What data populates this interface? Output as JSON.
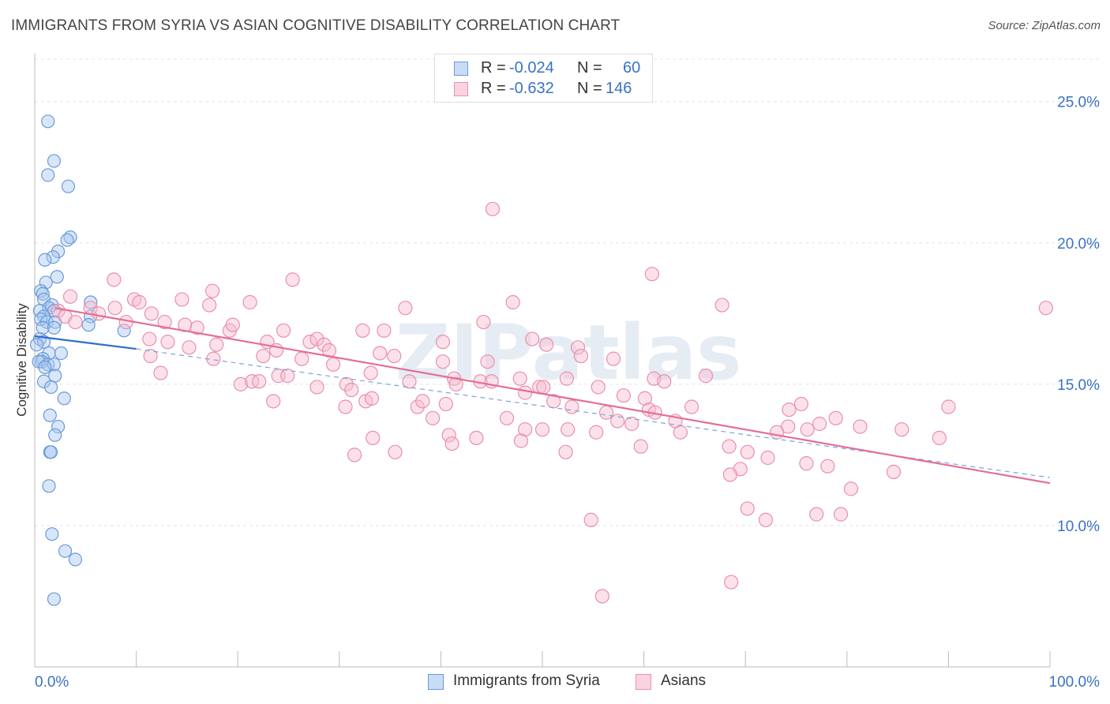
{
  "title": "IMMIGRANTS FROM SYRIA VS ASIAN COGNITIVE DISABILITY CORRELATION CHART",
  "source": "Source: ZipAtlas.com",
  "watermark": "ZIPatlas",
  "legend": {
    "r_label": "R =",
    "n_label": "N =",
    "rows": [
      {
        "name": "Immigrants from Syria",
        "r": "-0.024",
        "n": "60",
        "color": "#a8c8f0",
        "border": "#6a9ad8"
      },
      {
        "name": "Asians",
        "r": "-0.632",
        "n": "146",
        "color": "#f8bcd0",
        "border": "#e890ac"
      }
    ]
  },
  "chart_data": {
    "type": "scatter",
    "title": "IMMIGRANTS FROM SYRIA VS ASIAN COGNITIVE DISABILITY CORRELATION CHART",
    "xlabel": "",
    "ylabel": "Cognitive Disability",
    "xlim": [
      0,
      100
    ],
    "ylim": [
      5,
      26.5
    ],
    "x_tick_labels": [
      "0.0%",
      "100.0%"
    ],
    "y_ticks": [
      10,
      15,
      20,
      25
    ],
    "y_tick_labels": [
      "10.0%",
      "15.0%",
      "20.0%",
      "25.0%"
    ],
    "grid": true,
    "series": [
      {
        "name": "Immigrants from Syria",
        "color": "#6a9ad8",
        "fill": "#a8c8f0",
        "trend": {
          "x": [
            0,
            10
          ],
          "y": [
            16.7,
            16.25
          ],
          "color": "#2f6fd0"
        },
        "trend_dashed": {
          "x": [
            10,
            100
          ],
          "y": [
            16.25,
            11.7
          ],
          "color": "#7aa4dc"
        },
        "points": [
          {
            "x": 1.3,
            "y": 24.3
          },
          {
            "x": 1.9,
            "y": 22.9
          },
          {
            "x": 1.3,
            "y": 22.4
          },
          {
            "x": 3.3,
            "y": 22.0
          },
          {
            "x": 3.5,
            "y": 20.2
          },
          {
            "x": 3.2,
            "y": 20.1
          },
          {
            "x": 2.3,
            "y": 19.7
          },
          {
            "x": 1.8,
            "y": 19.5
          },
          {
            "x": 1.0,
            "y": 19.4
          },
          {
            "x": 2.2,
            "y": 18.8
          },
          {
            "x": 1.1,
            "y": 18.6
          },
          {
            "x": 0.6,
            "y": 18.3
          },
          {
            "x": 0.8,
            "y": 18.2
          },
          {
            "x": 0.9,
            "y": 18.0
          },
          {
            "x": 5.5,
            "y": 17.9
          },
          {
            "x": 1.7,
            "y": 17.8
          },
          {
            "x": 1.4,
            "y": 17.7
          },
          {
            "x": 1.9,
            "y": 17.6
          },
          {
            "x": 0.5,
            "y": 17.6
          },
          {
            "x": 0.9,
            "y": 17.4
          },
          {
            "x": 0.6,
            "y": 17.3
          },
          {
            "x": 1.2,
            "y": 17.2
          },
          {
            "x": 2.0,
            "y": 17.2
          },
          {
            "x": 5.5,
            "y": 17.4
          },
          {
            "x": 5.3,
            "y": 17.1
          },
          {
            "x": 0.8,
            "y": 17.0
          },
          {
            "x": 1.9,
            "y": 17.0
          },
          {
            "x": 8.8,
            "y": 16.9
          },
          {
            "x": 0.5,
            "y": 16.6
          },
          {
            "x": 0.9,
            "y": 16.5
          },
          {
            "x": 0.2,
            "y": 16.4
          },
          {
            "x": 2.6,
            "y": 16.1
          },
          {
            "x": 1.4,
            "y": 16.1
          },
          {
            "x": 0.8,
            "y": 15.9
          },
          {
            "x": 0.7,
            "y": 15.8
          },
          {
            "x": 0.4,
            "y": 15.8
          },
          {
            "x": 1.3,
            "y": 15.7
          },
          {
            "x": 1.9,
            "y": 15.7
          },
          {
            "x": 1.0,
            "y": 15.6
          },
          {
            "x": 2.0,
            "y": 15.3
          },
          {
            "x": 0.9,
            "y": 15.1
          },
          {
            "x": 1.6,
            "y": 14.9
          },
          {
            "x": 2.9,
            "y": 14.5
          },
          {
            "x": 1.5,
            "y": 13.9
          },
          {
            "x": 2.3,
            "y": 13.5
          },
          {
            "x": 2.0,
            "y": 13.2
          },
          {
            "x": 1.5,
            "y": 12.6
          },
          {
            "x": 1.6,
            "y": 12.6
          },
          {
            "x": 1.4,
            "y": 11.4
          },
          {
            "x": 1.7,
            "y": 9.7
          },
          {
            "x": 3.0,
            "y": 9.1
          },
          {
            "x": 4.0,
            "y": 8.8
          },
          {
            "x": 1.9,
            "y": 7.4
          }
        ]
      },
      {
        "name": "Asians",
        "color": "#e890ac",
        "fill": "#f8bcd0",
        "trend": {
          "x": [
            2,
            100
          ],
          "y": [
            17.7,
            11.5
          ],
          "color": "#e46c96"
        },
        "points": [
          {
            "x": 3.5,
            "y": 18.1
          },
          {
            "x": 5.5,
            "y": 17.7
          },
          {
            "x": 7.9,
            "y": 17.7
          },
          {
            "x": 9.8,
            "y": 18.0
          },
          {
            "x": 11.5,
            "y": 17.5
          },
          {
            "x": 14.5,
            "y": 18.0
          },
          {
            "x": 17.5,
            "y": 18.3
          },
          {
            "x": 7.8,
            "y": 18.7
          },
          {
            "x": 10.3,
            "y": 17.9
          },
          {
            "x": 17.2,
            "y": 17.8
          },
          {
            "x": 21.2,
            "y": 17.9
          },
          {
            "x": 25.4,
            "y": 18.7
          },
          {
            "x": 2.3,
            "y": 17.6
          },
          {
            "x": 3.0,
            "y": 17.4
          },
          {
            "x": 4.0,
            "y": 17.2
          },
          {
            "x": 6.3,
            "y": 17.5
          },
          {
            "x": 9.0,
            "y": 17.2
          },
          {
            "x": 12.8,
            "y": 17.2
          },
          {
            "x": 14.8,
            "y": 17.1
          },
          {
            "x": 16.0,
            "y": 17.0
          },
          {
            "x": 19.2,
            "y": 16.9
          },
          {
            "x": 19.5,
            "y": 17.1
          },
          {
            "x": 24.5,
            "y": 16.9
          },
          {
            "x": 27.1,
            "y": 16.5
          },
          {
            "x": 27.8,
            "y": 16.6
          },
          {
            "x": 32.3,
            "y": 16.9
          },
          {
            "x": 34.4,
            "y": 16.9
          },
          {
            "x": 36.5,
            "y": 17.7
          },
          {
            "x": 44.2,
            "y": 17.2
          },
          {
            "x": 47.1,
            "y": 17.9
          },
          {
            "x": 60.8,
            "y": 18.9
          },
          {
            "x": 67.7,
            "y": 17.8
          },
          {
            "x": 99.6,
            "y": 17.7
          },
          {
            "x": 45.1,
            "y": 21.2
          },
          {
            "x": 11.3,
            "y": 16.6
          },
          {
            "x": 13.1,
            "y": 16.5
          },
          {
            "x": 15.2,
            "y": 16.3
          },
          {
            "x": 17.9,
            "y": 16.4
          },
          {
            "x": 22.9,
            "y": 16.5
          },
          {
            "x": 28.5,
            "y": 16.4
          },
          {
            "x": 29.0,
            "y": 16.2
          },
          {
            "x": 40.2,
            "y": 16.5
          },
          {
            "x": 49.0,
            "y": 16.6
          },
          {
            "x": 50.4,
            "y": 16.4
          },
          {
            "x": 53.5,
            "y": 16.3
          },
          {
            "x": 53.8,
            "y": 16.0
          },
          {
            "x": 57.0,
            "y": 15.9
          },
          {
            "x": 11.4,
            "y": 16.0
          },
          {
            "x": 17.6,
            "y": 15.9
          },
          {
            "x": 22.5,
            "y": 16.0
          },
          {
            "x": 23.8,
            "y": 16.2
          },
          {
            "x": 26.3,
            "y": 15.9
          },
          {
            "x": 29.4,
            "y": 15.7
          },
          {
            "x": 34.0,
            "y": 16.1
          },
          {
            "x": 35.4,
            "y": 16.0
          },
          {
            "x": 40.2,
            "y": 15.8
          },
          {
            "x": 44.6,
            "y": 15.8
          },
          {
            "x": 12.4,
            "y": 15.4
          },
          {
            "x": 24.0,
            "y": 15.3
          },
          {
            "x": 24.9,
            "y": 15.3
          },
          {
            "x": 33.1,
            "y": 15.4
          },
          {
            "x": 41.3,
            "y": 15.2
          },
          {
            "x": 47.8,
            "y": 15.2
          },
          {
            "x": 52.4,
            "y": 15.2
          },
          {
            "x": 61.0,
            "y": 15.2
          },
          {
            "x": 66.1,
            "y": 15.3
          },
          {
            "x": 20.3,
            "y": 15.0
          },
          {
            "x": 21.4,
            "y": 15.1
          },
          {
            "x": 22.1,
            "y": 15.1
          },
          {
            "x": 27.8,
            "y": 14.9
          },
          {
            "x": 30.7,
            "y": 15.0
          },
          {
            "x": 31.2,
            "y": 14.8
          },
          {
            "x": 36.9,
            "y": 15.1
          },
          {
            "x": 41.5,
            "y": 15.0
          },
          {
            "x": 43.9,
            "y": 15.1
          },
          {
            "x": 45.0,
            "y": 15.1
          },
          {
            "x": 48.3,
            "y": 14.7
          },
          {
            "x": 49.7,
            "y": 14.9
          },
          {
            "x": 50.1,
            "y": 14.9
          },
          {
            "x": 55.5,
            "y": 14.9
          },
          {
            "x": 58.0,
            "y": 14.6
          },
          {
            "x": 60.1,
            "y": 14.5
          },
          {
            "x": 62.0,
            "y": 15.1
          },
          {
            "x": 23.5,
            "y": 14.4
          },
          {
            "x": 30.6,
            "y": 14.2
          },
          {
            "x": 32.6,
            "y": 14.4
          },
          {
            "x": 33.2,
            "y": 14.5
          },
          {
            "x": 37.7,
            "y": 14.2
          },
          {
            "x": 38.2,
            "y": 14.4
          },
          {
            "x": 40.5,
            "y": 14.3
          },
          {
            "x": 51.1,
            "y": 14.4
          },
          {
            "x": 52.9,
            "y": 14.2
          },
          {
            "x": 56.3,
            "y": 14.0
          },
          {
            "x": 60.5,
            "y": 14.1
          },
          {
            "x": 61.1,
            "y": 14.0
          },
          {
            "x": 64.7,
            "y": 14.2
          },
          {
            "x": 74.3,
            "y": 14.1
          },
          {
            "x": 75.5,
            "y": 14.3
          },
          {
            "x": 90.0,
            "y": 14.2
          },
          {
            "x": 39.2,
            "y": 13.8
          },
          {
            "x": 46.5,
            "y": 13.8
          },
          {
            "x": 57.4,
            "y": 13.7
          },
          {
            "x": 58.8,
            "y": 13.6
          },
          {
            "x": 63.1,
            "y": 13.7
          },
          {
            "x": 74.2,
            "y": 13.5
          },
          {
            "x": 76.1,
            "y": 13.4
          },
          {
            "x": 77.3,
            "y": 13.6
          },
          {
            "x": 78.9,
            "y": 13.8
          },
          {
            "x": 81.3,
            "y": 13.5
          },
          {
            "x": 33.3,
            "y": 13.1
          },
          {
            "x": 40.8,
            "y": 13.2
          },
          {
            "x": 43.5,
            "y": 13.1
          },
          {
            "x": 48.3,
            "y": 13.4
          },
          {
            "x": 50.0,
            "y": 13.4
          },
          {
            "x": 52.5,
            "y": 13.4
          },
          {
            "x": 55.3,
            "y": 13.3
          },
          {
            "x": 63.6,
            "y": 13.3
          },
          {
            "x": 73.1,
            "y": 13.3
          },
          {
            "x": 85.4,
            "y": 13.4
          },
          {
            "x": 89.1,
            "y": 13.1
          },
          {
            "x": 31.5,
            "y": 12.5
          },
          {
            "x": 35.5,
            "y": 12.6
          },
          {
            "x": 41.1,
            "y": 12.9
          },
          {
            "x": 47.9,
            "y": 13.0
          },
          {
            "x": 52.3,
            "y": 12.6
          },
          {
            "x": 59.7,
            "y": 12.8
          },
          {
            "x": 68.4,
            "y": 12.8
          },
          {
            "x": 70.2,
            "y": 12.6
          },
          {
            "x": 72.2,
            "y": 12.4
          },
          {
            "x": 76.0,
            "y": 12.2
          },
          {
            "x": 78.1,
            "y": 12.1
          },
          {
            "x": 84.6,
            "y": 11.9
          },
          {
            "x": 69.5,
            "y": 12.0
          },
          {
            "x": 68.5,
            "y": 11.8
          },
          {
            "x": 80.4,
            "y": 11.3
          },
          {
            "x": 54.8,
            "y": 10.2
          },
          {
            "x": 70.2,
            "y": 10.6
          },
          {
            "x": 72.0,
            "y": 10.2
          },
          {
            "x": 77.0,
            "y": 10.4
          },
          {
            "x": 79.4,
            "y": 10.4
          },
          {
            "x": 55.9,
            "y": 7.5
          },
          {
            "x": 68.6,
            "y": 8.0
          }
        ]
      }
    ]
  }
}
